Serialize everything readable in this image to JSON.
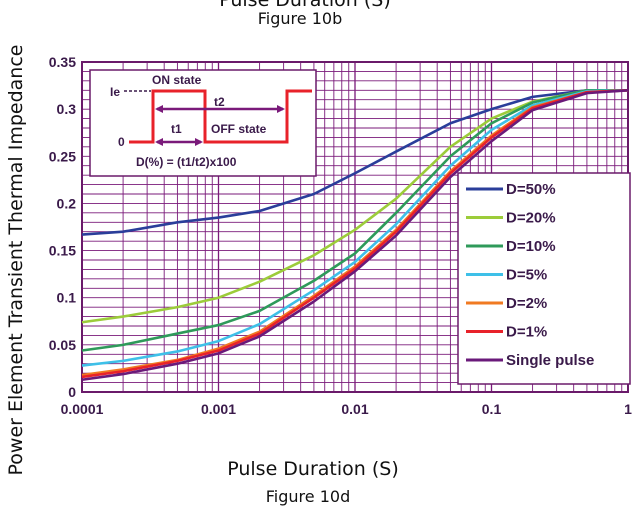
{
  "header": {
    "top_caption_partial": "Pulse Duration (S)",
    "top_figure_label": "Figure 10b"
  },
  "footer": {
    "figure_label": "Figure 10d"
  },
  "colors": {
    "grid": "#7a1a7a",
    "frame": "#6a1a6a",
    "tick_text": "#3a1a4a",
    "inset_pulse": "#e8222a",
    "inset_arrow": "#7a1a7a"
  },
  "inset": {
    "level_label": "Ie",
    "zero_label": "0",
    "on_state": "ON  state",
    "off_state": "OFF  state",
    "t1_label": "t1",
    "t2_label": "t2",
    "formula": "D(%)  =  (t1/t2)x100"
  },
  "chart_data": {
    "type": "line",
    "title": "",
    "xlabel": "Pulse Duration (S)",
    "ylabel": "Power Element Transient Thermal Impedance",
    "x_scale": "log",
    "xlim": [
      0.0001,
      1
    ],
    "ylim": [
      0,
      0.35
    ],
    "x_tick_labels": [
      "0.0001",
      "0.001",
      "0.01",
      "0.1",
      "1"
    ],
    "y_tick_labels": [
      "0",
      "0.05",
      "0.1",
      "0.15",
      "0.2",
      "0.25",
      "0.3",
      "0.35"
    ],
    "grid": true,
    "legend_position": "right-bottom",
    "x": [
      0.0001,
      0.0002,
      0.0005,
      0.001,
      0.002,
      0.005,
      0.01,
      0.02,
      0.05,
      0.1,
      0.2,
      0.5,
      1
    ],
    "series": [
      {
        "name": "D=50%",
        "color": "#2a3e9a",
        "values": [
          0.167,
          0.17,
          0.18,
          0.185,
          0.192,
          0.21,
          0.232,
          0.255,
          0.285,
          0.3,
          0.313,
          0.32,
          0.32
        ]
      },
      {
        "name": "D=20%",
        "color": "#9ccc3a",
        "values": [
          0.074,
          0.08,
          0.09,
          0.1,
          0.117,
          0.145,
          0.172,
          0.205,
          0.26,
          0.29,
          0.308,
          0.32,
          0.32
        ]
      },
      {
        "name": "D=10%",
        "color": "#2e9a5a",
        "values": [
          0.044,
          0.05,
          0.062,
          0.071,
          0.086,
          0.118,
          0.147,
          0.19,
          0.25,
          0.285,
          0.307,
          0.32,
          0.32
        ]
      },
      {
        "name": "D=5%",
        "color": "#3ec0e8",
        "values": [
          0.028,
          0.033,
          0.043,
          0.054,
          0.072,
          0.108,
          0.138,
          0.178,
          0.24,
          0.278,
          0.304,
          0.319,
          0.32
        ]
      },
      {
        "name": "D=2%",
        "color": "#f07a22",
        "values": [
          0.018,
          0.024,
          0.034,
          0.046,
          0.064,
          0.102,
          0.133,
          0.172,
          0.234,
          0.272,
          0.302,
          0.318,
          0.32
        ]
      },
      {
        "name": "D=1%",
        "color": "#e8222a",
        "values": [
          0.016,
          0.022,
          0.033,
          0.044,
          0.062,
          0.1,
          0.131,
          0.17,
          0.232,
          0.27,
          0.301,
          0.318,
          0.32
        ]
      },
      {
        "name": "Single pulse",
        "color": "#6a1a7a",
        "values": [
          0.013,
          0.019,
          0.03,
          0.041,
          0.059,
          0.096,
          0.128,
          0.166,
          0.228,
          0.266,
          0.299,
          0.317,
          0.32
        ]
      }
    ]
  }
}
